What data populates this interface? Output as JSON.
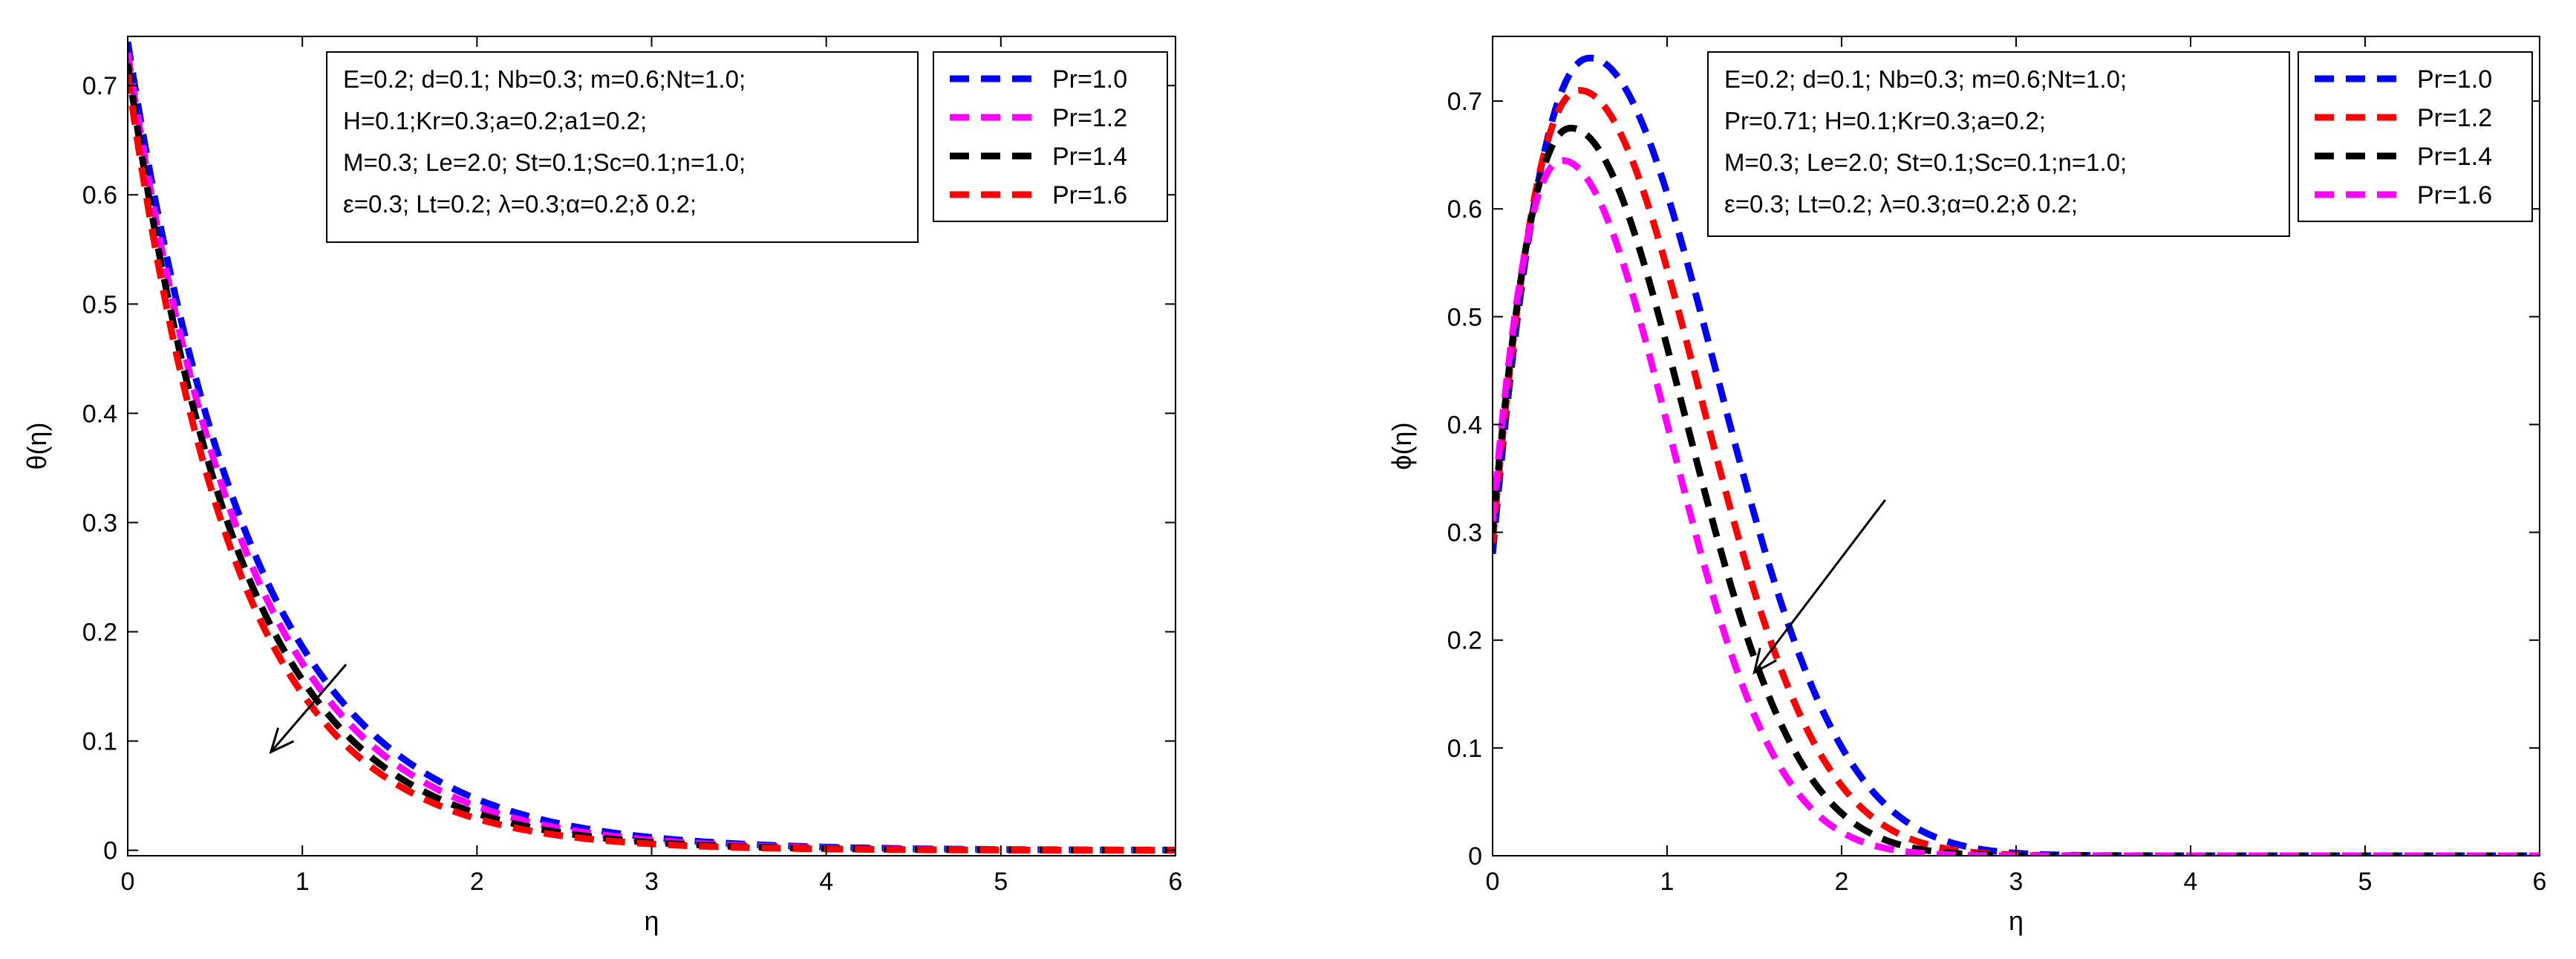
{
  "chart_data": [
    {
      "type": "line",
      "xlabel": "η",
      "ylabel": "θ(η)",
      "xlim": [
        0,
        6
      ],
      "ylim": [
        -0.005,
        0.745
      ],
      "xticks": [
        0,
        1,
        2,
        3,
        4,
        5,
        6
      ],
      "yticks": [
        0,
        0.1,
        0.2,
        0.3,
        0.4,
        0.5,
        0.6,
        0.7
      ],
      "xtick_labels": [
        "0",
        "1",
        "2",
        "3",
        "4",
        "5",
        "6"
      ],
      "ytick_labels": [
        "0",
        "0.1",
        "0.2",
        "0.3",
        "0.4",
        "0.5",
        "0.6",
        "0.7"
      ],
      "params_box": [
        "E=0.2; d=0.1; Nb=0.3; m=0.6;Nt=1.0;",
        "H=0.1;Kr=0.3;a=0.2;a1=0.2;",
        "M=0.3; Le=2.0; St=0.1;Sc=0.1;n=1.0;",
        "ε=0.3; Lt=0.2; λ=0.3;α=0.2;δ 0.2;"
      ],
      "legend_position": "top-right",
      "arrow": {
        "direction": "decreasing with increasing Pr",
        "from": [
          1.25,
          0.17
        ],
        "to": [
          0.82,
          0.09
        ]
      },
      "series": [
        {
          "name": "Pr=1.0",
          "color": "#0000ff",
          "model": "exp",
          "y0": 0.74,
          "k": 1.38
        },
        {
          "name": "Pr=1.2",
          "color": "#ff00ff",
          "model": "exp",
          "y0": 0.73,
          "k": 1.45
        },
        {
          "name": "Pr=1.4",
          "color": "#000000",
          "model": "exp",
          "y0": 0.72,
          "k": 1.53
        },
        {
          "name": "Pr=1.6",
          "color": "#ff0000",
          "model": "exp",
          "y0": 0.71,
          "k": 1.6
        }
      ]
    },
    {
      "type": "line",
      "xlabel": "η",
      "ylabel": "ϕ(η)",
      "xlim": [
        0,
        6
      ],
      "ylim": [
        0,
        0.76
      ],
      "xticks": [
        0,
        1,
        2,
        3,
        4,
        5,
        6
      ],
      "yticks": [
        0,
        0.1,
        0.2,
        0.3,
        0.4,
        0.5,
        0.6,
        0.7
      ],
      "xtick_labels": [
        "0",
        "1",
        "2",
        "3",
        "4",
        "5",
        "6"
      ],
      "ytick_labels": [
        "0",
        "0.1",
        "0.2",
        "0.3",
        "0.4",
        "0.5",
        "0.6",
        "0.7"
      ],
      "params_box": [
        "E=0.2; d=0.1; Nb=0.3; m=0.6;Nt=1.0;",
        "Pr=0.71; H=0.1;Kr=0.3;a=0.2;",
        "M=0.3; Le=2.0; St=0.1;Sc=0.1;n=1.0;",
        "ε=0.3; Lt=0.2; λ=0.3;α=0.2;δ 0.2;"
      ],
      "legend_position": "top-right",
      "arrow": {
        "direction": "decreasing with increasing Pr",
        "from": [
          2.25,
          0.33
        ],
        "to": [
          1.5,
          0.17
        ]
      },
      "series": [
        {
          "name": "Pr=1.0",
          "color": "#0000ff",
          "model": "hump",
          "peak_x": 0.56,
          "peak_y": 0.74,
          "start_y": 0.28,
          "b": 1.02
        },
        {
          "name": "Pr=1.2",
          "color": "#ff0000",
          "model": "hump",
          "peak_x": 0.5,
          "peak_y": 0.71,
          "start_y": 0.29,
          "b": 0.97
        },
        {
          "name": "Pr=1.4",
          "color": "#000000",
          "model": "hump",
          "peak_x": 0.45,
          "peak_y": 0.675,
          "start_y": 0.3,
          "b": 0.92
        },
        {
          "name": "Pr=1.6",
          "color": "#ff00ff",
          "model": "hump",
          "peak_x": 0.4,
          "peak_y": 0.645,
          "start_y": 0.31,
          "b": 0.87
        }
      ]
    }
  ]
}
